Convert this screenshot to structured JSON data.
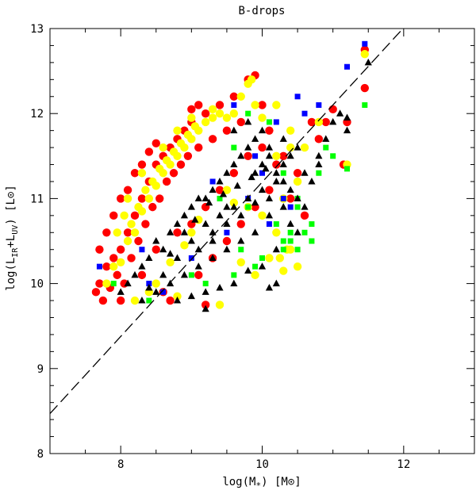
{
  "chart_data": {
    "type": "scatter",
    "title": "B-drops",
    "xlabel": {
      "main": "log(M",
      "sub": "*",
      "tail": ") [M",
      "sun": "⊙",
      "end": "]"
    },
    "ylabel": {
      "main": "log(L",
      "sub1": "IR",
      "mid": "+L",
      "sub2": "UV",
      "tail": ") [L",
      "sun": "⊙",
      "end": "]"
    },
    "xlim": [
      7,
      13
    ],
    "ylim": [
      8,
      13
    ],
    "x_ticks": [
      8,
      10,
      12
    ],
    "y_ticks": [
      8,
      9,
      10,
      11,
      12,
      13
    ],
    "x_minor_step": 0.5,
    "y_minor_step": 0.2,
    "grid": false,
    "reference_line": {
      "style": "dashed",
      "color": "#000000",
      "x": [
        7,
        12.1
      ],
      "y": [
        8.47,
        13.1
      ]
    },
    "series": [
      {
        "marker": "circle",
        "color": "#ff0000",
        "points": [
          [
            7.65,
            9.9
          ],
          [
            7.7,
            10.0
          ],
          [
            7.75,
            9.8
          ],
          [
            7.8,
            10.2
          ],
          [
            7.85,
            9.95
          ],
          [
            7.9,
            10.3
          ],
          [
            7.95,
            10.1
          ],
          [
            8.0,
            10.4
          ],
          [
            8.05,
            10.0
          ],
          [
            8.1,
            10.6
          ],
          [
            8.15,
            10.3
          ],
          [
            8.2,
            10.8
          ],
          [
            8.25,
            10.5
          ],
          [
            8.3,
            11.0
          ],
          [
            8.35,
            10.7
          ],
          [
            8.4,
            11.2
          ],
          [
            8.45,
            10.9
          ],
          [
            8.5,
            11.4
          ],
          [
            8.55,
            11.0
          ],
          [
            8.6,
            11.5
          ],
          [
            8.65,
            11.2
          ],
          [
            8.7,
            11.6
          ],
          [
            8.75,
            11.3
          ],
          [
            8.8,
            11.7
          ],
          [
            8.85,
            11.4
          ],
          [
            8.9,
            11.8
          ],
          [
            8.95,
            11.5
          ],
          [
            9.0,
            11.9
          ],
          [
            9.1,
            11.6
          ],
          [
            9.2,
            12.0
          ],
          [
            9.3,
            11.7
          ],
          [
            9.4,
            12.1
          ],
          [
            9.5,
            11.8
          ],
          [
            9.6,
            12.2
          ],
          [
            9.7,
            11.9
          ],
          [
            9.8,
            12.4
          ],
          [
            9.9,
            12.45
          ],
          [
            10.0,
            12.1
          ],
          [
            10.1,
            11.8
          ],
          [
            10.3,
            11.5
          ],
          [
            10.5,
            11.3
          ],
          [
            10.7,
            11.9
          ],
          [
            10.9,
            11.9
          ],
          [
            11.0,
            12.05
          ],
          [
            11.2,
            11.9
          ],
          [
            11.45,
            12.75
          ],
          [
            11.45,
            12.3
          ],
          [
            8.0,
            9.8
          ],
          [
            8.3,
            10.1
          ],
          [
            8.5,
            10.4
          ],
          [
            9.0,
            10.7
          ],
          [
            9.2,
            10.9
          ],
          [
            8.8,
            10.6
          ],
          [
            9.4,
            11.1
          ],
          [
            9.6,
            11.3
          ],
          [
            9.8,
            11.5
          ],
          [
            10.0,
            11.6
          ],
          [
            10.2,
            11.4
          ],
          [
            10.4,
            11.0
          ],
          [
            10.6,
            10.8
          ],
          [
            8.6,
            9.9
          ],
          [
            8.7,
            9.8
          ],
          [
            9.1,
            10.1
          ],
          [
            9.3,
            10.3
          ],
          [
            9.5,
            10.5
          ],
          [
            9.7,
            10.7
          ],
          [
            9.9,
            10.9
          ],
          [
            10.1,
            11.1
          ],
          [
            7.7,
            10.4
          ],
          [
            7.8,
            10.6
          ],
          [
            7.9,
            10.8
          ],
          [
            8.0,
            11.0
          ],
          [
            8.1,
            11.1
          ],
          [
            8.2,
            11.3
          ],
          [
            8.3,
            11.4
          ],
          [
            8.4,
            11.55
          ],
          [
            8.5,
            11.65
          ],
          [
            9.0,
            12.05
          ],
          [
            9.1,
            12.1
          ],
          [
            10.8,
            11.7
          ],
          [
            11.15,
            11.4
          ],
          [
            9.2,
            9.75
          ]
        ]
      },
      {
        "marker": "circle",
        "color": "#ffff00",
        "points": [
          [
            7.8,
            10.0
          ],
          [
            7.9,
            10.2
          ],
          [
            8.0,
            10.25
          ],
          [
            8.1,
            10.5
          ],
          [
            8.15,
            10.7
          ],
          [
            8.2,
            10.6
          ],
          [
            8.25,
            10.9
          ],
          [
            8.3,
            10.85
          ],
          [
            8.35,
            11.1
          ],
          [
            8.4,
            11.0
          ],
          [
            8.45,
            11.2
          ],
          [
            8.5,
            11.15
          ],
          [
            8.55,
            11.35
          ],
          [
            8.6,
            11.3
          ],
          [
            8.65,
            11.45
          ],
          [
            8.7,
            11.4
          ],
          [
            8.75,
            11.55
          ],
          [
            8.8,
            11.5
          ],
          [
            8.85,
            11.65
          ],
          [
            8.9,
            11.6
          ],
          [
            8.95,
            11.75
          ],
          [
            9.0,
            11.7
          ],
          [
            9.05,
            11.85
          ],
          [
            9.1,
            11.8
          ],
          [
            9.2,
            11.9
          ],
          [
            9.3,
            11.95
          ],
          [
            9.4,
            12.0
          ],
          [
            9.5,
            11.95
          ],
          [
            9.7,
            12.2
          ],
          [
            9.8,
            12.35
          ],
          [
            9.85,
            12.4
          ],
          [
            9.9,
            12.1
          ],
          [
            10.0,
            11.95
          ],
          [
            10.2,
            12.1
          ],
          [
            10.4,
            11.8
          ],
          [
            10.6,
            11.6
          ],
          [
            10.8,
            11.9
          ],
          [
            11.2,
            11.4
          ],
          [
            11.45,
            12.7
          ],
          [
            9.5,
            11.1
          ],
          [
            9.6,
            10.95
          ],
          [
            9.8,
            10.9
          ],
          [
            10.0,
            10.8
          ],
          [
            10.2,
            10.6
          ],
          [
            10.4,
            10.4
          ],
          [
            10.5,
            10.2
          ],
          [
            10.1,
            10.3
          ],
          [
            9.9,
            10.1
          ],
          [
            9.7,
            10.25
          ],
          [
            9.0,
            10.6
          ],
          [
            9.1,
            10.75
          ],
          [
            8.9,
            10.45
          ],
          [
            8.7,
            10.25
          ],
          [
            8.5,
            10.0
          ],
          [
            8.4,
            9.9
          ],
          [
            10.3,
            11.0
          ],
          [
            10.5,
            11.2
          ],
          [
            10.2,
            11.5
          ],
          [
            10.4,
            11.6
          ],
          [
            8.2,
            9.8
          ],
          [
            8.8,
            9.85
          ],
          [
            9.4,
            9.75
          ],
          [
            10.3,
            10.15
          ],
          [
            10.25,
            10.3
          ],
          [
            10.35,
            10.4
          ],
          [
            7.95,
            10.6
          ],
          [
            8.05,
            10.8
          ],
          [
            8.1,
            11.0
          ],
          [
            8.3,
            11.3
          ],
          [
            8.6,
            11.6
          ],
          [
            8.8,
            11.8
          ],
          [
            9.0,
            11.95
          ],
          [
            9.3,
            12.05
          ],
          [
            9.6,
            12.0
          ]
        ]
      },
      {
        "marker": "square",
        "color": "#0000ff",
        "points": [
          [
            7.7,
            10.2
          ],
          [
            8.3,
            10.4
          ],
          [
            9.3,
            11.2
          ],
          [
            9.6,
            12.1
          ],
          [
            9.9,
            11.5
          ],
          [
            10.2,
            11.9
          ],
          [
            10.5,
            12.2
          ],
          [
            10.6,
            12.0
          ],
          [
            10.8,
            12.1
          ],
          [
            11.2,
            12.55
          ],
          [
            11.45,
            12.82
          ],
          [
            9.5,
            10.6
          ],
          [
            8.6,
            9.9
          ],
          [
            9.0,
            10.3
          ],
          [
            10.0,
            11.3
          ],
          [
            10.3,
            11.0
          ],
          [
            10.4,
            10.9
          ],
          [
            9.8,
            11.0
          ],
          [
            8.4,
            10.0
          ],
          [
            10.1,
            10.7
          ]
        ]
      },
      {
        "marker": "square",
        "color": "#00ff00",
        "points": [
          [
            7.9,
            10.0
          ],
          [
            8.4,
            9.8
          ],
          [
            9.0,
            10.1
          ],
          [
            9.4,
            11.0
          ],
          [
            9.6,
            11.6
          ],
          [
            9.8,
            12.0
          ],
          [
            10.1,
            11.9
          ],
          [
            10.3,
            11.3
          ],
          [
            10.5,
            11.0
          ],
          [
            10.5,
            10.9
          ],
          [
            10.6,
            10.6
          ],
          [
            10.7,
            10.7
          ],
          [
            10.8,
            11.3
          ],
          [
            10.9,
            11.6
          ],
          [
            11.0,
            11.5
          ],
          [
            11.2,
            11.35
          ],
          [
            11.45,
            12.1
          ],
          [
            10.3,
            10.4
          ],
          [
            10.4,
            10.5
          ],
          [
            10.5,
            10.4
          ],
          [
            10.4,
            10.6
          ],
          [
            10.0,
            10.3
          ],
          [
            9.9,
            10.2
          ],
          [
            9.6,
            10.1
          ],
          [
            9.2,
            10.0
          ],
          [
            9.8,
            10.9
          ],
          [
            10.2,
            10.7
          ],
          [
            10.7,
            10.5
          ],
          [
            10.3,
            10.5
          ],
          [
            9.7,
            10.4
          ]
        ]
      },
      {
        "marker": "triangle",
        "color": "#000000",
        "points": [
          [
            8.0,
            9.9
          ],
          [
            8.1,
            10.0
          ],
          [
            8.2,
            10.1
          ],
          [
            8.3,
            10.2
          ],
          [
            8.4,
            10.3
          ],
          [
            8.5,
            10.5
          ],
          [
            8.6,
            10.4
          ],
          [
            8.7,
            10.6
          ],
          [
            8.8,
            10.7
          ],
          [
            8.9,
            10.8
          ],
          [
            9.0,
            10.9
          ],
          [
            9.1,
            11.0
          ],
          [
            9.2,
            11.0
          ],
          [
            9.3,
            11.1
          ],
          [
            9.4,
            11.2
          ],
          [
            9.5,
            11.3
          ],
          [
            9.6,
            11.4
          ],
          [
            9.7,
            11.5
          ],
          [
            9.8,
            11.6
          ],
          [
            9.9,
            11.7
          ],
          [
            10.0,
            11.4
          ],
          [
            10.1,
            11.5
          ],
          [
            10.2,
            11.3
          ],
          [
            10.3,
            11.2
          ],
          [
            10.4,
            11.1
          ],
          [
            10.5,
            11.0
          ],
          [
            10.6,
            10.9
          ],
          [
            10.7,
            11.2
          ],
          [
            10.8,
            11.5
          ],
          [
            10.9,
            11.7
          ],
          [
            11.0,
            11.9
          ],
          [
            11.1,
            12.0
          ],
          [
            11.2,
            11.8
          ],
          [
            11.5,
            12.6
          ],
          [
            8.3,
            9.8
          ],
          [
            8.5,
            9.9
          ],
          [
            8.7,
            10.0
          ],
          [
            8.9,
            10.1
          ],
          [
            9.1,
            10.2
          ],
          [
            9.3,
            10.3
          ],
          [
            9.5,
            10.4
          ],
          [
            9.7,
            10.5
          ],
          [
            9.9,
            10.6
          ],
          [
            10.1,
            10.8
          ],
          [
            10.3,
            10.9
          ],
          [
            10.5,
            10.6
          ],
          [
            8.6,
            10.1
          ],
          [
            8.8,
            10.3
          ],
          [
            9.0,
            10.5
          ],
          [
            9.2,
            10.7
          ],
          [
            9.4,
            10.8
          ],
          [
            9.6,
            10.9
          ],
          [
            9.8,
            11.0
          ],
          [
            10.0,
            11.1
          ],
          [
            10.2,
            11.2
          ],
          [
            8.4,
            9.95
          ],
          [
            8.8,
            9.8
          ],
          [
            9.0,
            9.85
          ],
          [
            9.2,
            9.9
          ],
          [
            9.4,
            9.95
          ],
          [
            9.6,
            10.0
          ],
          [
            9.8,
            10.15
          ],
          [
            10.0,
            10.2
          ],
          [
            10.2,
            10.4
          ],
          [
            10.4,
            10.7
          ],
          [
            10.6,
            11.3
          ],
          [
            10.8,
            11.4
          ],
          [
            9.3,
            10.5
          ],
          [
            9.5,
            10.7
          ],
          [
            9.7,
            10.8
          ],
          [
            9.9,
            10.95
          ],
          [
            10.1,
            11.0
          ],
          [
            10.3,
            11.4
          ],
          [
            9.6,
            11.8
          ],
          [
            9.8,
            11.9
          ],
          [
            10.0,
            11.8
          ],
          [
            9.2,
            9.7
          ],
          [
            10.2,
            10.0
          ],
          [
            10.1,
            9.95
          ],
          [
            8.9,
            10.6
          ],
          [
            9.1,
            10.4
          ],
          [
            9.3,
            10.6
          ],
          [
            9.5,
            10.9
          ],
          [
            8.7,
            10.35
          ],
          [
            10.4,
            11.5
          ],
          [
            10.5,
            11.6
          ],
          [
            9.9,
            11.3
          ],
          [
            10.1,
            11.6
          ],
          [
            10.3,
            11.7
          ],
          [
            11.2,
            11.95
          ],
          [
            9.05,
            10.75
          ],
          [
            9.25,
            10.95
          ],
          [
            9.45,
            11.05
          ],
          [
            9.65,
            11.15
          ],
          [
            9.85,
            11.25
          ],
          [
            10.05,
            11.35
          ]
        ]
      }
    ]
  }
}
